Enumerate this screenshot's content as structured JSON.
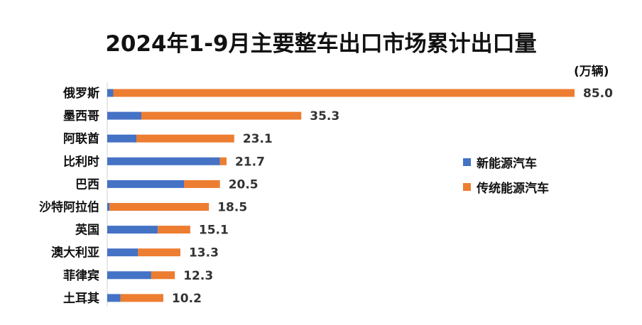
{
  "chart_data": {
    "type": "bar",
    "orientation": "horizontal",
    "stacked": true,
    "title": "2024年1-9月主要整车出口市场累计出口量",
    "unit": "(万辆)",
    "categories": [
      "俄罗斯",
      "墨西哥",
      "阿联酋",
      "比利时",
      "巴西",
      "沙特阿拉伯",
      "英国",
      "澳大利亚",
      "菲律宾",
      "土耳其"
    ],
    "series": [
      {
        "name": "新能源汽车",
        "color": "#4472C4",
        "values": [
          1.1,
          6.2,
          5.3,
          20.5,
          14.0,
          0.4,
          9.2,
          5.6,
          8.0,
          2.4
        ]
      },
      {
        "name": "传统能源汽车",
        "color": "#ED7D31",
        "values": [
          83.9,
          29.1,
          17.8,
          1.2,
          6.5,
          18.1,
          5.9,
          7.7,
          4.3,
          7.8
        ]
      }
    ],
    "totals": [
      "85.0",
      "35.3",
      "23.1",
      "21.7",
      "20.5",
      "18.5",
      "15.1",
      "13.3",
      "12.3",
      "10.2"
    ],
    "xlim": [
      0,
      85
    ],
    "grid": false,
    "legend_position": "right"
  }
}
